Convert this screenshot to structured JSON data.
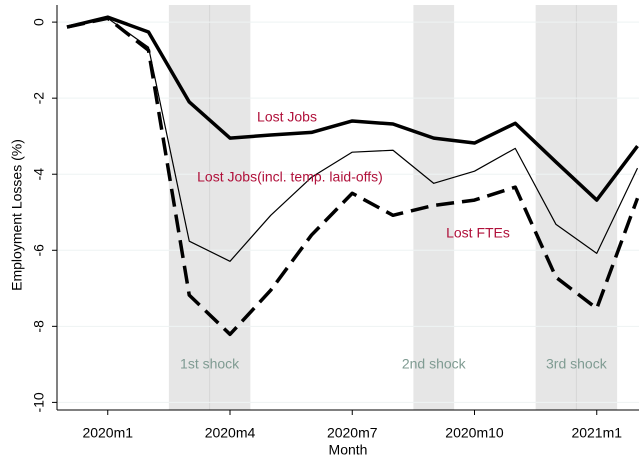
{
  "chart_data": {
    "type": "line",
    "x_label": "Month",
    "y_label": "Employment Losses (%)",
    "categories": [
      null,
      "2020m1",
      null,
      null,
      "2020m4",
      null,
      null,
      "2020m7",
      null,
      null,
      "2020m10",
      null,
      null,
      "2021m1",
      null
    ],
    "series": [
      {
        "name": "Lost Jobs",
        "color": "#000000",
        "style": "thick",
        "values": [
          -0.13,
          0.13,
          -0.26,
          -2.1,
          -3.05,
          -2.97,
          -2.9,
          -2.6,
          -2.68,
          -3.05,
          -3.18,
          -2.66,
          -3.68,
          -4.68,
          -3.26
        ]
      },
      {
        "name": "Lost Jobs(incl. temp. laid-offs)",
        "color": "#000000",
        "style": "thin",
        "values": [
          -0.13,
          0.1,
          -0.66,
          -5.76,
          -6.29,
          -5.08,
          -4.08,
          -3.42,
          -3.37,
          -4.24,
          -3.92,
          -3.32,
          -5.32,
          -6.08,
          -3.84
        ]
      },
      {
        "name": "Lost FTEs",
        "color": "#000000",
        "style": "dashed",
        "values": [
          -0.13,
          0.1,
          -0.74,
          -7.18,
          -8.21,
          -7.05,
          -5.6,
          -4.5,
          -5.08,
          -4.82,
          -4.68,
          -4.34,
          -6.71,
          -7.53,
          -4.63
        ]
      }
    ],
    "label_color": "#b0103a",
    "bands": [
      {
        "label": "1st shock",
        "from": 2.5,
        "to": 4.5
      },
      {
        "label": "2nd shock",
        "from": 8.5,
        "to": 9.5
      },
      {
        "label": "3rd shock",
        "from": 11.5,
        "to": 13.5
      }
    ],
    "ylim": [
      -10.2,
      0.45
    ],
    "yticks": [
      0,
      -2,
      -4,
      -6,
      -8,
      -10
    ],
    "grid": true
  }
}
